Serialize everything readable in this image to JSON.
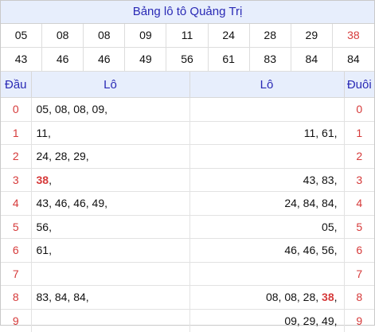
{
  "title": "Bảng lô tô Quảng Trị",
  "numbers_row1": [
    "05",
    "08",
    "08",
    "09",
    "11",
    "24",
    "28",
    "29",
    "38"
  ],
  "numbers_row2": [
    "43",
    "46",
    "46",
    "49",
    "56",
    "61",
    "83",
    "84",
    "84"
  ],
  "colors": {
    "accent": "#d63a3a",
    "header_bg": "#e7eefc",
    "header_text": "#2a2ab5"
  },
  "headers": {
    "dau": "Đầu",
    "lo_left": "Lô",
    "lo_right": "Lô",
    "duoi": "Đuôi"
  },
  "rows": [
    {
      "dau": "0",
      "left": [
        {
          "t": "05, 08, 08, 09,"
        }
      ],
      "right": [
        {
          "t": ""
        }
      ],
      "duoi": "0"
    },
    {
      "dau": "1",
      "left": [
        {
          "t": "11,"
        }
      ],
      "right": [
        {
          "t": "11, 61,"
        }
      ],
      "duoi": "1"
    },
    {
      "dau": "2",
      "left": [
        {
          "t": "24, 28, 29,"
        }
      ],
      "right": [
        {
          "t": ""
        }
      ],
      "duoi": "2"
    },
    {
      "dau": "3",
      "left": [
        {
          "t": "38",
          "hl": true
        },
        {
          "t": ","
        }
      ],
      "right": [
        {
          "t": "43, 83,"
        }
      ],
      "duoi": "3"
    },
    {
      "dau": "4",
      "left": [
        {
          "t": "43, 46, 46, 49,"
        }
      ],
      "right": [
        {
          "t": "24, 84, 84,"
        }
      ],
      "duoi": "4"
    },
    {
      "dau": "5",
      "left": [
        {
          "t": "56,"
        }
      ],
      "right": [
        {
          "t": "05,"
        }
      ],
      "duoi": "5"
    },
    {
      "dau": "6",
      "left": [
        {
          "t": "61,"
        }
      ],
      "right": [
        {
          "t": "46, 46, 56,"
        }
      ],
      "duoi": "6"
    },
    {
      "dau": "7",
      "left": [
        {
          "t": ""
        }
      ],
      "right": [
        {
          "t": ""
        }
      ],
      "duoi": "7"
    },
    {
      "dau": "8",
      "left": [
        {
          "t": "83, 84, 84,"
        }
      ],
      "right": [
        {
          "t": "08, 08, 28, "
        },
        {
          "t": "38",
          "hl": true
        },
        {
          "t": ","
        }
      ],
      "duoi": "8"
    },
    {
      "dau": "9",
      "left": [
        {
          "t": ""
        }
      ],
      "right": [
        {
          "t": "09, 29, 49,"
        }
      ],
      "duoi": "9"
    }
  ]
}
